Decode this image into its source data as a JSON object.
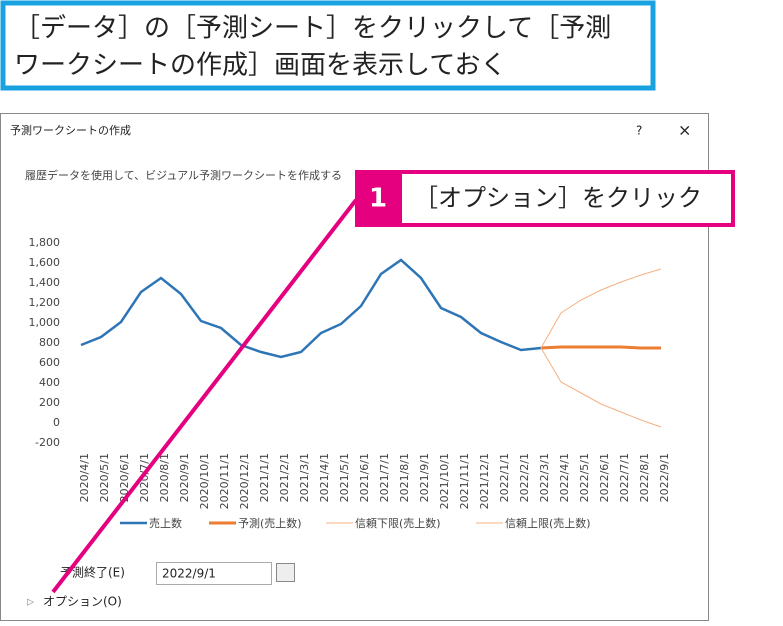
{
  "instruction": [
    "［データ］の［予測シート］をクリックして［予測",
    "ワークシートの作成］画面を表示しておく"
  ],
  "dialog": {
    "title": "予測ワークシートの作成",
    "help": "?",
    "close": "×",
    "description": "履歴データを使用して、ビジュアル予測ワークシートを作成する"
  },
  "callout": {
    "number": "1",
    "text": "［オプション］をクリック"
  },
  "forecast_end": {
    "label": "予測終了(E)",
    "value": "2022/9/1"
  },
  "options": "オプション(O)",
  "chart_data": {
    "type": "line",
    "categories": [
      "2020/4/1",
      "2020/5/1",
      "2020/6/1",
      "2020/7/1",
      "2020/8/1",
      "2020/9/1",
      "2020/10/1",
      "2020/11/1",
      "2020/12/1",
      "2021/1/1",
      "2021/2/1",
      "2021/3/1",
      "2021/4/1",
      "2021/5/1",
      "2021/6/1",
      "2021/7/1",
      "2021/8/1",
      "2021/9/1",
      "2021/10/1",
      "2021/11/1",
      "2021/12/1",
      "2022/1/1",
      "2022/2/1",
      "2022/3/1",
      "2022/4/1",
      "2022/5/1",
      "2022/6/1",
      "2022/7/1",
      "2022/8/1",
      "2022/9/1"
    ],
    "series": [
      {
        "name": "売上数",
        "color": "#2e75b6",
        "values": [
          780,
          860,
          1010,
          1310,
          1450,
          1290,
          1020,
          950,
          780,
          710,
          660,
          710,
          900,
          990,
          1170,
          1490,
          1630,
          1450,
          1150,
          1060,
          900,
          810,
          730,
          750,
          null,
          null,
          null,
          null,
          null,
          null
        ]
      },
      {
        "name": "予測(売上数)",
        "color": "#ed7d31",
        "values": [
          null,
          null,
          null,
          null,
          null,
          null,
          null,
          null,
          null,
          null,
          null,
          null,
          null,
          null,
          null,
          null,
          null,
          null,
          null,
          null,
          null,
          null,
          null,
          750,
          760,
          760,
          760,
          760,
          750,
          750
        ]
      },
      {
        "name": "信頼下限(売上数)",
        "color": "#f4b183",
        "values": [
          null,
          null,
          null,
          null,
          null,
          null,
          null,
          null,
          null,
          null,
          null,
          null,
          null,
          null,
          null,
          null,
          null,
          null,
          null,
          null,
          null,
          null,
          null,
          750,
          410,
          300,
          190,
          110,
          30,
          -40
        ]
      },
      {
        "name": "信頼上限(売上数)",
        "color": "#f4b183",
        "values": [
          null,
          null,
          null,
          null,
          null,
          null,
          null,
          null,
          null,
          null,
          null,
          null,
          null,
          null,
          null,
          null,
          null,
          null,
          null,
          null,
          null,
          null,
          null,
          750,
          1100,
          1230,
          1330,
          1410,
          1480,
          1540
        ]
      }
    ],
    "ylim": [
      -200,
      1800
    ],
    "yticks": [
      {
        "value": 1800,
        "label": "1,800"
      },
      {
        "value": 1600,
        "label": "1,600"
      },
      {
        "value": 1400,
        "label": "1,400"
      },
      {
        "value": 1200,
        "label": "1,200"
      },
      {
        "value": 1000,
        "label": "1,000"
      },
      800,
      600,
      400,
      200,
      0,
      -200
    ],
    "grid": false
  }
}
